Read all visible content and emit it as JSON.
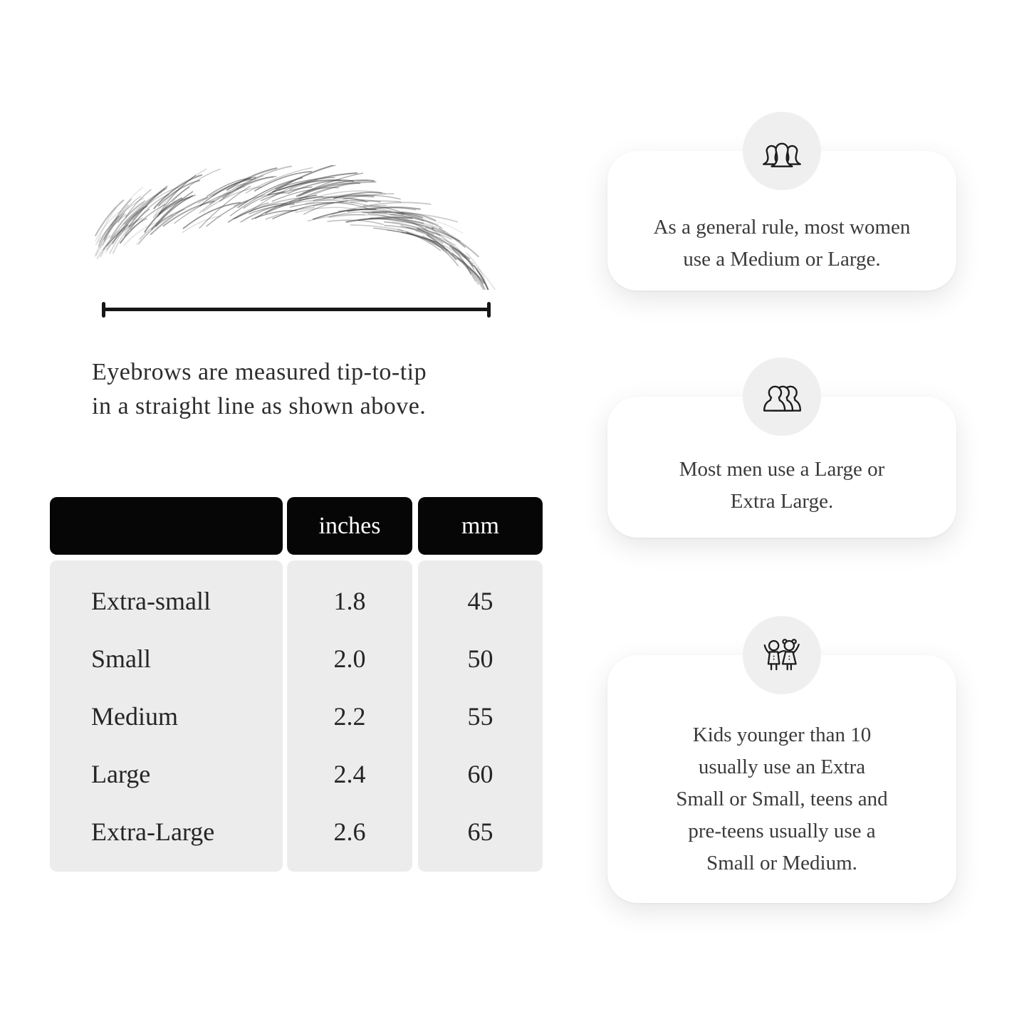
{
  "measurement": {
    "caption": "Eyebrows are measured tip-to-tip\nin a straight line as shown above."
  },
  "size_table": {
    "columns": [
      "",
      "inches",
      "mm"
    ],
    "rows": [
      {
        "size": "Extra-small",
        "inches": "1.8",
        "mm": "45"
      },
      {
        "size": "Small",
        "inches": "2.0",
        "mm": "50"
      },
      {
        "size": "Medium",
        "inches": "2.2",
        "mm": "55"
      },
      {
        "size": "Large",
        "inches": "2.4",
        "mm": "60"
      },
      {
        "size": "Extra-Large",
        "inches": "2.6",
        "mm": "65"
      }
    ]
  },
  "notes": [
    {
      "icon": "women-group-icon",
      "text": "As a general rule, most women\nuse a Medium or Large."
    },
    {
      "icon": "men-group-icon",
      "text": "Most men use a Large or\nExtra Large."
    },
    {
      "icon": "children-icon",
      "text": "Kids younger than 10\nusually use an Extra\nSmall or Small, teens and\npre-teens usually use a\nSmall or Medium."
    }
  ],
  "colors": {
    "header_bg": "#060606",
    "header_text": "#ffffff",
    "row_bg": "#ececec",
    "card_bg": "#ffffff",
    "icon_circle_bg": "#efefef",
    "ink": "#2d2d2d"
  }
}
